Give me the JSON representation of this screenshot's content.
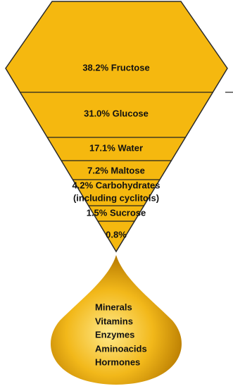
{
  "bands": [
    {
      "lines": [
        "38.2% Fructose"
      ]
    },
    {
      "lines": [
        "31.0% Glucose"
      ]
    },
    {
      "lines": [
        "17.1% Water"
      ]
    },
    {
      "lines": [
        "7.2% Maltose"
      ]
    },
    {
      "lines": [
        "4.2% Carbohydrates",
        "(including cyclitols)"
      ]
    },
    {
      "lines": [
        "1.5% Sucrose"
      ]
    },
    {
      "lines": [
        "0.8%"
      ]
    }
  ],
  "drop": {
    "items": [
      "Minerals",
      "Vitamins",
      "Enzymes",
      "Aminoacids",
      "Hormones"
    ]
  }
}
